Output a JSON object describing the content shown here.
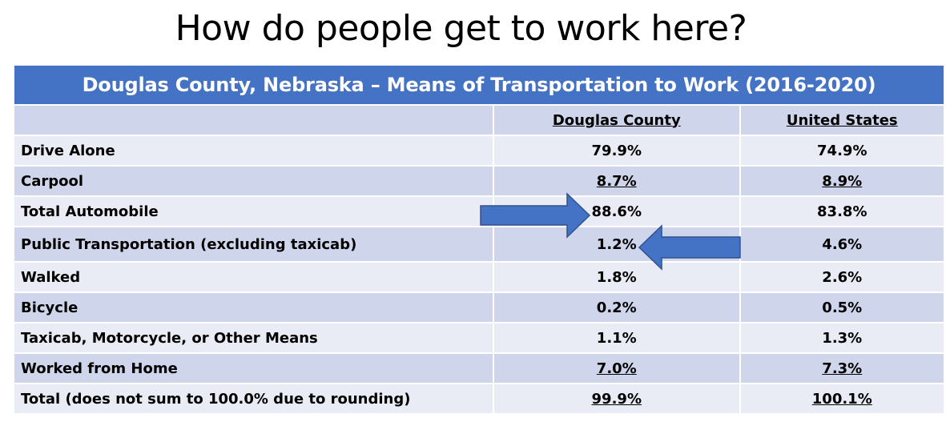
{
  "title": "How do people get to work here?",
  "table": {
    "banner": "Douglas County, Nebraska – Means of Transportation to Work (2016-2020)",
    "headers": {
      "label": "",
      "douglas": "Douglas County",
      "us": "United States"
    },
    "rows": [
      {
        "label": "Drive Alone",
        "douglas": "79.9%",
        "us": "74.9%"
      },
      {
        "label": "Carpool",
        "douglas": "8.7%",
        "us": "8.9%"
      },
      {
        "label": "Total Automobile",
        "douglas": "88.6%",
        "us": "83.8%"
      },
      {
        "label": "Public Transportation (excluding taxicab)",
        "douglas": "1.2%",
        "us": "4.6%"
      },
      {
        "label": "Walked",
        "douglas": "1.8%",
        "us": "2.6%"
      },
      {
        "label": "Bicycle",
        "douglas": "0.2%",
        "us": "0.5%"
      },
      {
        "label": "Taxicab, Motorcycle, or Other Means",
        "douglas": "1.1%",
        "us": "1.3%"
      },
      {
        "label": "Worked from Home",
        "douglas": "7.0%",
        "us": "7.3%"
      },
      {
        "label": "Total (does not sum to 100.0% due to rounding)",
        "douglas": "99.9%",
        "us": "100.1%"
      }
    ]
  },
  "colors": {
    "banner": "#4472c4",
    "row_shade": "#cfd5ea",
    "row_light": "#e9ebf5",
    "arrow": "#4472c4",
    "arrow_border": "#2f528f"
  },
  "icons": {
    "arrow_total_automobile": "arrow-right-icon",
    "arrow_public_transportation": "arrow-left-icon"
  }
}
